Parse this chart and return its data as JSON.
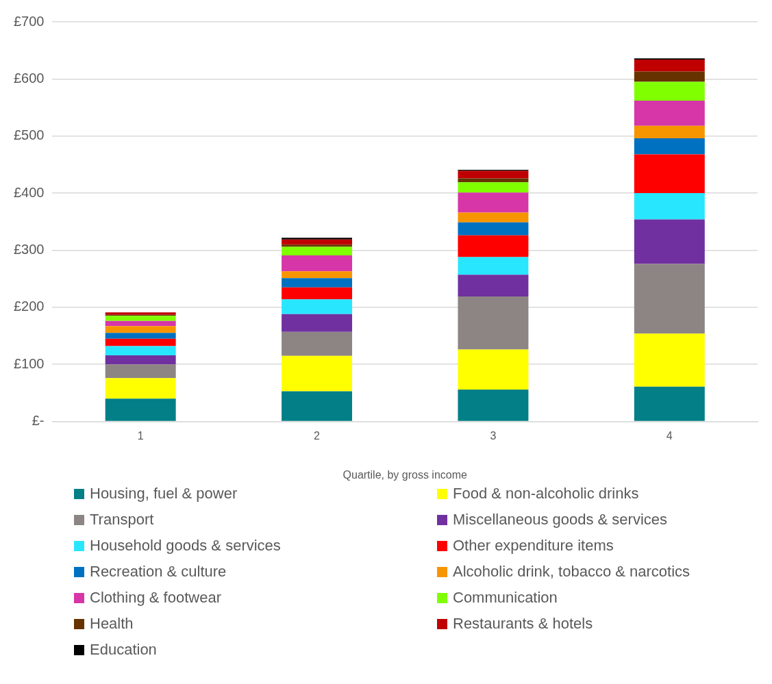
{
  "chart_data": {
    "type": "bar",
    "stacked": true,
    "xlabel": "Quartile, by gross income",
    "categories": [
      "1",
      "2",
      "3",
      "4"
    ],
    "ylim": [
      0,
      700
    ],
    "yticks": [
      {
        "value": 0,
        "label": "£-"
      },
      {
        "value": 100,
        "label": "£100"
      },
      {
        "value": 200,
        "label": "£200"
      },
      {
        "value": 300,
        "label": "£300"
      },
      {
        "value": 400,
        "label": "£400"
      },
      {
        "value": 500,
        "label": "£500"
      },
      {
        "value": 600,
        "label": "£600"
      },
      {
        "value": 700,
        "label": "£700"
      }
    ],
    "grid": "y",
    "legend": "bottom",
    "series": [
      {
        "name": "Housing, fuel & power",
        "color": "#027f87",
        "values": [
          40,
          53,
          56,
          61
        ]
      },
      {
        "name": "Food & non-alcoholic drinks",
        "color": "#ffff00",
        "values": [
          36,
          62,
          70,
          93
        ]
      },
      {
        "name": "Transport",
        "color": "#8c8584",
        "values": [
          24,
          42,
          93,
          122
        ]
      },
      {
        "name": "Miscellaneous goods & services",
        "color": "#7030a0",
        "values": [
          16,
          31,
          38,
          78
        ]
      },
      {
        "name": "Household goods & services",
        "color": "#29e6ff",
        "values": [
          16,
          26,
          31,
          46
        ]
      },
      {
        "name": "Other expenditure items",
        "color": "#ff0000",
        "values": [
          13,
          21,
          38,
          68
        ]
      },
      {
        "name": "Recreation & culture",
        "color": "#0070c0",
        "values": [
          10,
          16,
          23,
          28
        ]
      },
      {
        "name": "Alcoholic drink, tobacco & narcotics",
        "color": "#f79500",
        "values": [
          12,
          12,
          17,
          22
        ]
      },
      {
        "name": "Clothing & footwear",
        "color": "#d636a8",
        "values": [
          9,
          28,
          35,
          44
        ]
      },
      {
        "name": "Communication",
        "color": "#80ff00",
        "values": [
          9,
          15,
          18,
          33
        ]
      },
      {
        "name": "Health",
        "color": "#663300",
        "values": [
          2,
          4,
          7,
          18
        ]
      },
      {
        "name": "Restaurants & hotels",
        "color": "#c00000",
        "values": [
          4,
          9,
          13,
          21
        ]
      },
      {
        "name": "Education",
        "color": "#000000",
        "values": [
          null,
          3,
          2,
          2
        ]
      }
    ]
  }
}
